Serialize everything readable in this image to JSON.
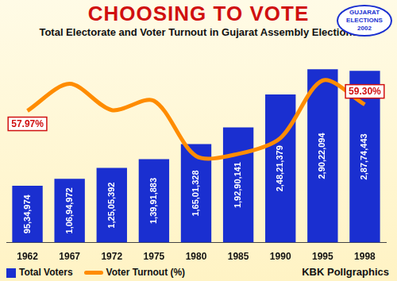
{
  "chart_data": {
    "type": "bar",
    "title": "CHOOSING TO VOTE",
    "subtitle": "Total Electorate and Voter Turnout in Gujarat Assembly Elections",
    "badge": "GUJARAT ELECTIONS 2002",
    "source": "KBK Pollgraphics",
    "categories": [
      "1962",
      "1967",
      "1972",
      "1975",
      "1980",
      "1985",
      "1990",
      "1995",
      "1998"
    ],
    "series": [
      {
        "name": "Total Voters",
        "type": "bar",
        "color": "#1a2fd0",
        "values": [
          9534974,
          10694972,
          12505392,
          13991883,
          16501328,
          19290141,
          24821379,
          29022094,
          28774443
        ],
        "value_labels": [
          "95,34,974",
          "1,06,94,972",
          "1,25,05,392",
          "1,39,91,883",
          "1,65,01,328",
          "1,92,90,141",
          "2,48,21,379",
          "2,90,22,094",
          "2,87,74,443"
        ]
      },
      {
        "name": "Voter Turnout (%)",
        "type": "line",
        "color": "#ff8c00",
        "axis": "y2",
        "values": [
          57.97,
          63.7,
          58.11,
          60.09,
          48.37,
          48.82,
          52.2,
          64.39,
          59.3
        ],
        "value_labels": [
          "57.97%",
          null,
          null,
          null,
          null,
          null,
          null,
          null,
          "59.30%"
        ]
      }
    ],
    "ylim": [
      0,
      30000000
    ],
    "y2lim": [
      30,
      68
    ],
    "data_labels": true,
    "tick_labels": "x",
    "grid": false,
    "legend": "bottom-left"
  }
}
